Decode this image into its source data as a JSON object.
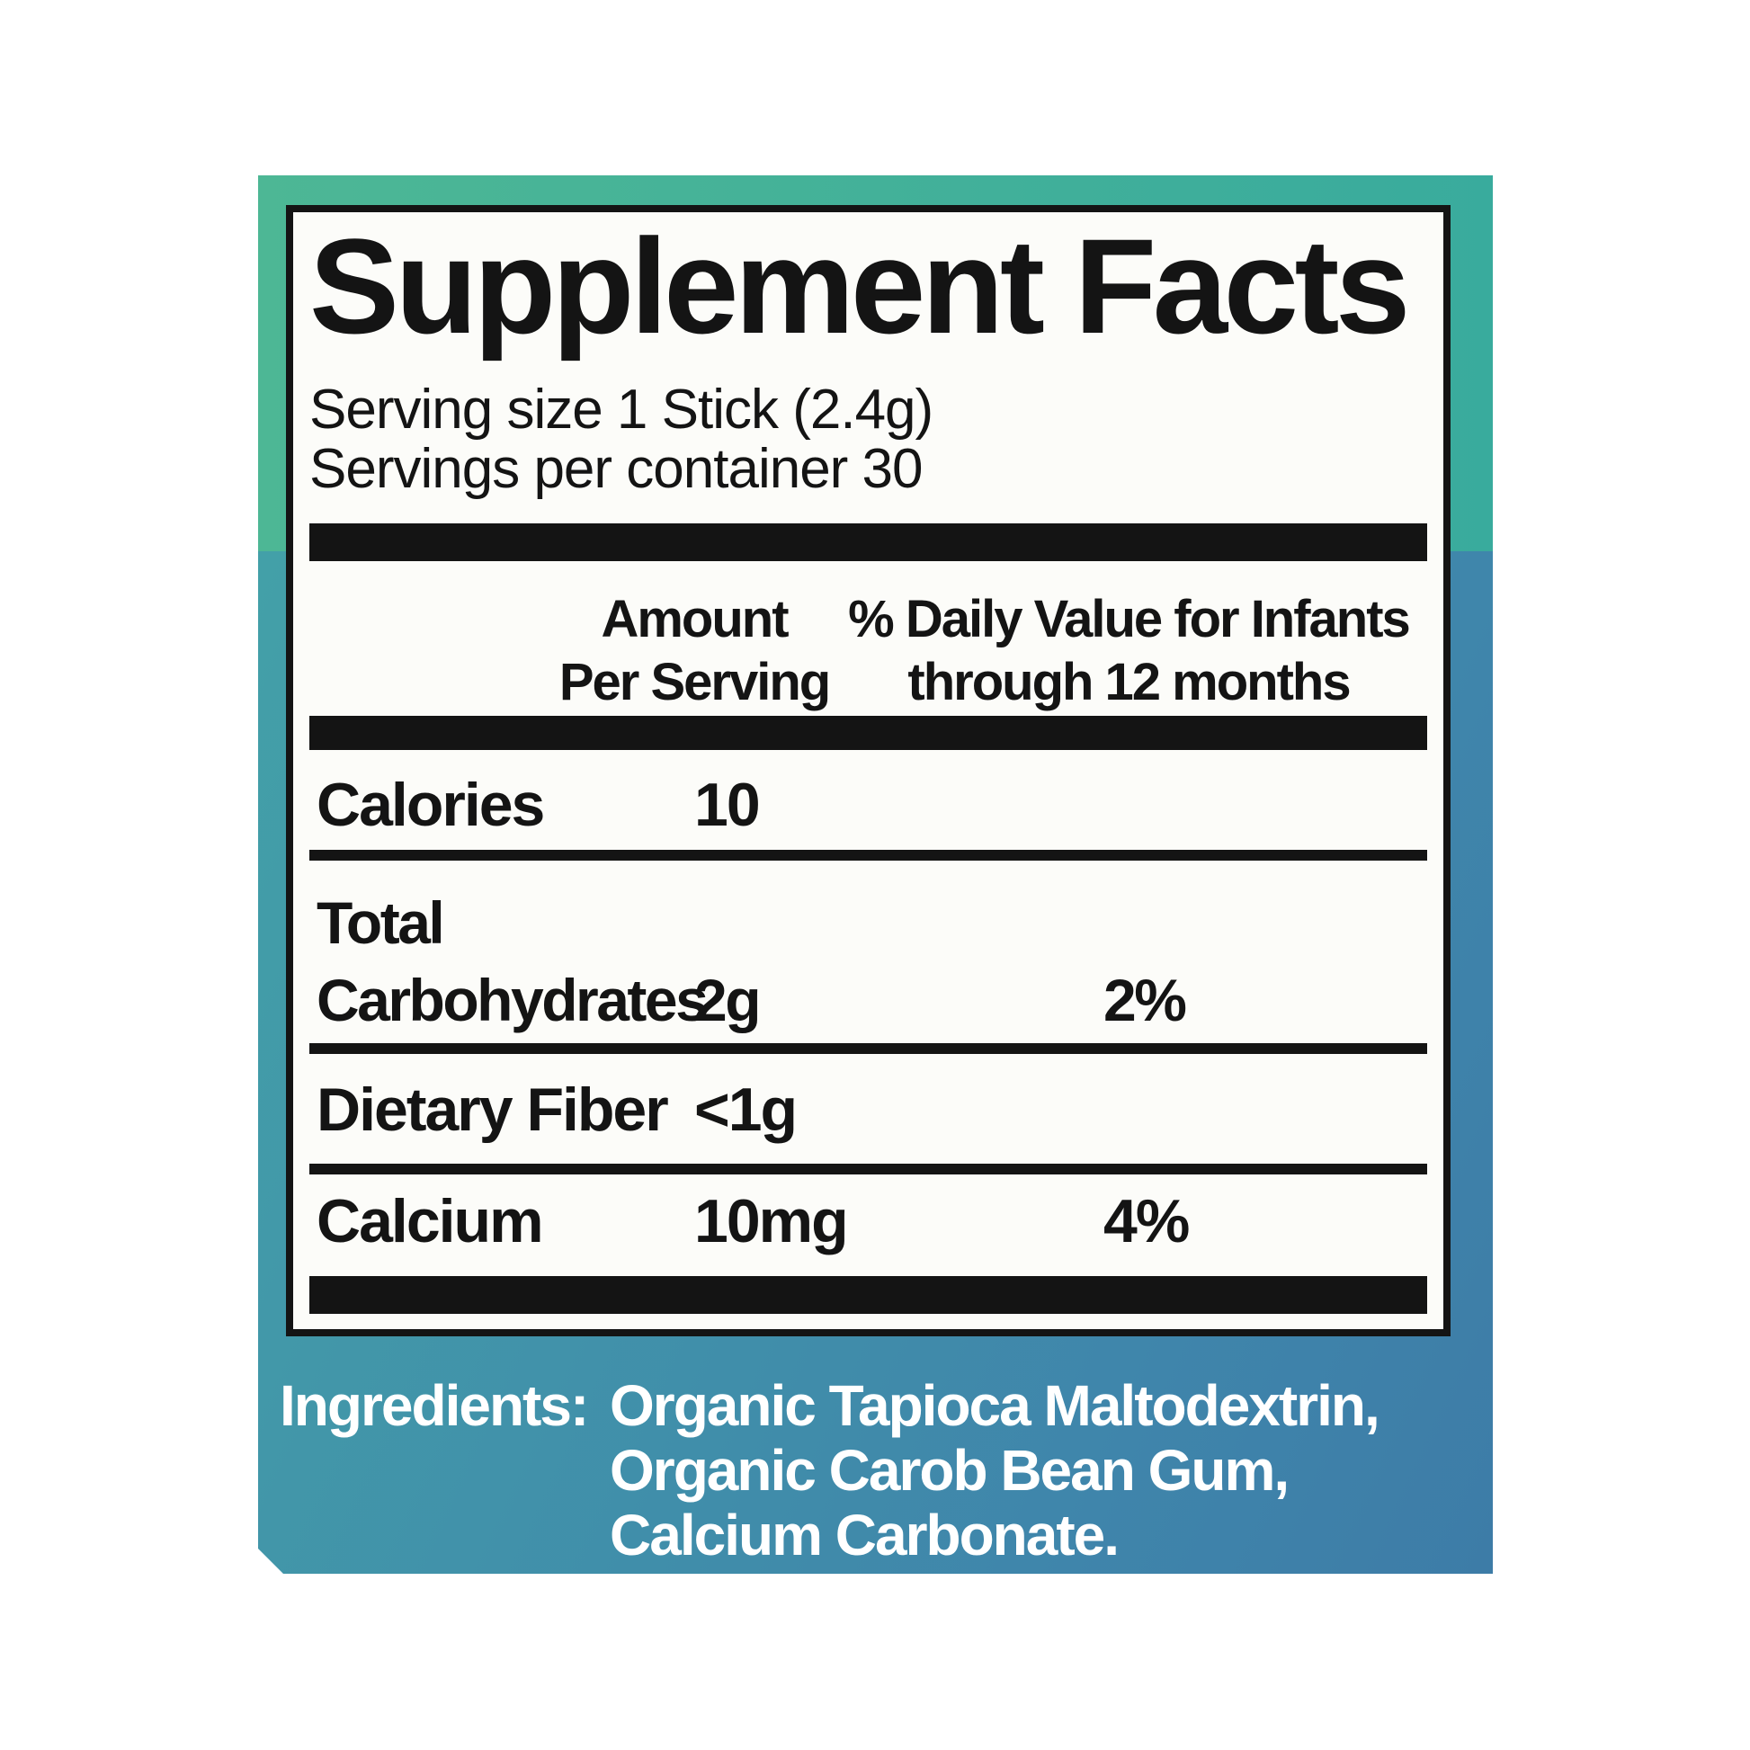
{
  "colors": {
    "card_green_left": "#4db795",
    "card_green_right": "#39ab9d",
    "card_blue_left": "#43a0a8",
    "card_blue_right": "#3d7ca7",
    "panel_background": "#fcfcf9",
    "rule_black": "#141414",
    "ingredients_text": "#ffffff"
  },
  "panel": {
    "title": "Supplement Facts",
    "serving_size": "Serving size 1 Stick (2.4g)",
    "servings_per_container": "Servings per container 30",
    "header": {
      "amount_line1": "Amount",
      "amount_line2": "Per Serving",
      "dv_line1": "% Daily Value for Infants",
      "dv_line2": "through 12 months"
    },
    "rows": [
      {
        "label": "Calories",
        "amount": "10",
        "dv": ""
      },
      {
        "label": "Total Carbohydrates",
        "label_line1": "Total",
        "label_line2": "Carbohydrates",
        "amount": "2g",
        "dv": "2%"
      },
      {
        "label": "Dietary Fiber",
        "amount": "<1g",
        "dv": ""
      },
      {
        "label": "Calcium",
        "amount": "10mg",
        "dv": "4%"
      }
    ]
  },
  "ingredients": {
    "label": "Ingredients:",
    "lines": [
      "Organic Tapioca Maltodextrin,",
      "Organic Carob Bean Gum,",
      "Calcium Carbonate."
    ]
  }
}
